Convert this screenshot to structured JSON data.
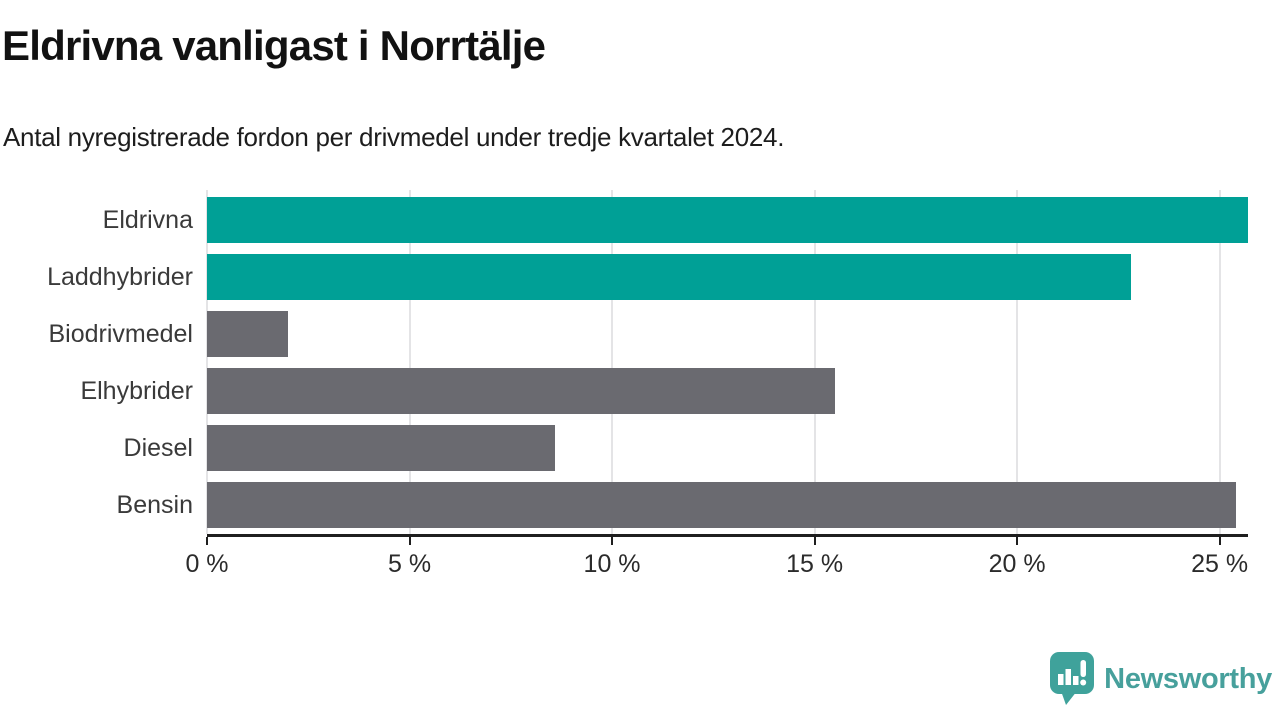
{
  "page": {
    "title": "Eldrivna vanligast i Norrtälje",
    "subtitle": "Antal nyregistrerade fordon per drivmedel under tredje kvartalet 2024."
  },
  "branding": {
    "name": "Newsworthy",
    "icon": "bar-chart-speech-bubble-icon",
    "text_color": "#47a09c",
    "icon_color": "#3fa29b"
  },
  "colors": {
    "highlight_bar": "#00a096",
    "default_bar": "#6a6a70",
    "axis": "#1f1f1f",
    "gridline": "#e4e4e6"
  },
  "chart_data": {
    "type": "bar",
    "orientation": "horizontal",
    "title": "Eldrivna vanligast i Norrtälje",
    "subtitle": "Antal nyregistrerade fordon per drivmedel under tredje kvartalet 2024.",
    "categories": [
      "Eldrivna",
      "Laddhybrider",
      "Biodrivmedel",
      "Elhybrider",
      "Diesel",
      "Bensin"
    ],
    "values": [
      25.7,
      22.8,
      2.0,
      15.5,
      8.6,
      25.4
    ],
    "unit": "%",
    "bar_colors": [
      "#00a096",
      "#00a096",
      "#6a6a70",
      "#6a6a70",
      "#6a6a70",
      "#6a6a70"
    ],
    "xlim": [
      0,
      25.7
    ],
    "x_ticks": [
      {
        "value": 0,
        "label": "0 %"
      },
      {
        "value": 5,
        "label": "5 %"
      },
      {
        "value": 10,
        "label": "10 %"
      },
      {
        "value": 15,
        "label": "15 %"
      },
      {
        "value": 20,
        "label": "20 %"
      },
      {
        "value": 25,
        "label": "25 %"
      }
    ],
    "grid": true,
    "xlabel": "",
    "ylabel": "",
    "legend": null
  }
}
